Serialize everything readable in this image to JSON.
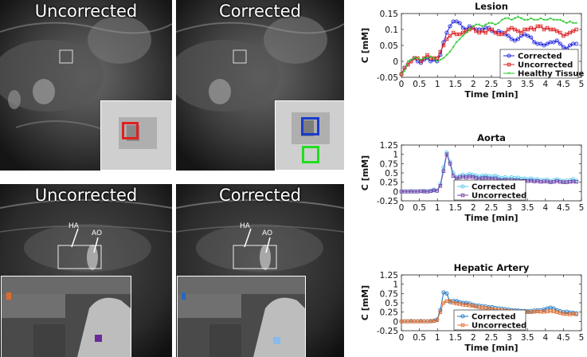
{
  "panels": {
    "top_left_title": "Uncorrected",
    "top_right_title": "Corrected",
    "bottom_left_title": "Uncorrected",
    "bottom_right_title": "Corrected",
    "ha_label": "HA",
    "ao_label": "AO"
  },
  "colors": {
    "roi_red": "#e02020",
    "roi_blue": "#1a3ccc",
    "roi_green": "#22dd22",
    "roi_orange": "#e06a2a",
    "roi_purple": "#6a2a9a",
    "roi_cyan": "#2a66c0",
    "roi_light_blue": "#88bbee"
  },
  "chart_data": [
    {
      "type": "line",
      "title": "Lesion",
      "xlabel": "Time [min]",
      "ylabel": "C [mM]",
      "xlim": [
        0,
        5
      ],
      "ylim": [
        -0.05,
        0.15
      ],
      "xticks": [
        "0",
        "0.5",
        "1",
        "1.5",
        "2",
        "2.5",
        "3",
        "3.5",
        "4",
        "4.5",
        "5"
      ],
      "yticks": [
        "-0.05",
        "0",
        "0.05",
        "0.1",
        "0.15"
      ],
      "legend_position": "bottom-right",
      "x": [
        0,
        0.09,
        0.18,
        0.27,
        0.36,
        0.45,
        0.54,
        0.63,
        0.72,
        0.81,
        0.9,
        0.99,
        1.08,
        1.17,
        1.26,
        1.35,
        1.44,
        1.53,
        1.62,
        1.71,
        1.8,
        1.89,
        1.98,
        2.07,
        2.16,
        2.25,
        2.34,
        2.43,
        2.52,
        2.61,
        2.7,
        2.79,
        2.88,
        2.97,
        3.06,
        3.15,
        3.24,
        3.33,
        3.42,
        3.51,
        3.6,
        3.69,
        3.78,
        3.87,
        3.96,
        4.05,
        4.14,
        4.23,
        4.32,
        4.41,
        4.5,
        4.59,
        4.68,
        4.77,
        4.86
      ],
      "series": [
        {
          "name": "Corrected",
          "color": "#1f22dd",
          "marker": "circle",
          "values": [
            -0.04,
            -0.02,
            -0.01,
            0.0,
            0.01,
            0.0,
            -0.005,
            0.005,
            0.01,
            0.0,
            0.005,
            0.0,
            0.02,
            0.06,
            0.09,
            0.11,
            0.125,
            0.125,
            0.12,
            0.105,
            0.1,
            0.11,
            0.105,
            0.1,
            0.1,
            0.1,
            0.105,
            0.105,
            0.095,
            0.09,
            0.095,
            0.09,
            0.085,
            0.08,
            0.07,
            0.065,
            0.07,
            0.08,
            0.085,
            0.08,
            0.075,
            0.06,
            0.055,
            0.055,
            0.05,
            0.055,
            0.06,
            0.06,
            0.065,
            0.055,
            0.045,
            0.04,
            0.05,
            0.055,
            0.055
          ]
        },
        {
          "name": "Uncorrected",
          "color": "#dd2222",
          "marker": "square",
          "values": [
            -0.04,
            -0.02,
            -0.01,
            0.0,
            0.01,
            0.01,
            0.0,
            0.01,
            0.02,
            0.01,
            0.01,
            0.01,
            0.03,
            0.05,
            0.07,
            0.08,
            0.09,
            0.085,
            0.085,
            0.09,
            0.095,
            0.1,
            0.105,
            0.095,
            0.09,
            0.095,
            0.09,
            0.1,
            0.1,
            0.09,
            0.085,
            0.085,
            0.09,
            0.1,
            0.105,
            0.1,
            0.095,
            0.09,
            0.1,
            0.1,
            0.105,
            0.1,
            0.11,
            0.11,
            0.1,
            0.105,
            0.1,
            0.1,
            0.095,
            0.09,
            0.08,
            0.085,
            0.09,
            0.095,
            0.1
          ]
        },
        {
          "name": "Healthy Tissue",
          "color": "#22c422",
          "marker": "star",
          "values": [
            -0.04,
            -0.03,
            0.0,
            0.005,
            0.01,
            0.01,
            0.005,
            0.01,
            0.01,
            0.015,
            0.01,
            0.0,
            0.005,
            0.01,
            0.02,
            0.03,
            0.045,
            0.06,
            0.07,
            0.08,
            0.09,
            0.1,
            0.11,
            0.115,
            0.115,
            0.11,
            0.115,
            0.12,
            0.12,
            0.115,
            0.12,
            0.13,
            0.135,
            0.135,
            0.13,
            0.135,
            0.14,
            0.135,
            0.13,
            0.13,
            0.135,
            0.13,
            0.13,
            0.135,
            0.13,
            0.13,
            0.135,
            0.13,
            0.13,
            0.13,
            0.125,
            0.12,
            0.125,
            0.12,
            0.12
          ]
        }
      ]
    },
    {
      "type": "line",
      "title": "Aorta",
      "xlabel": "Time [min]",
      "ylabel": "C [mM]",
      "xlim": [
        0,
        5
      ],
      "ylim": [
        -0.25,
        1.25
      ],
      "xticks": [
        "0",
        "0.5",
        "1",
        "1.5",
        "2",
        "2.5",
        "3",
        "3.5",
        "4",
        "4.5",
        "5"
      ],
      "yticks": [
        "-0.25",
        "0",
        "0.25",
        "0.5",
        "0.75",
        "1",
        "1.25"
      ],
      "legend_position": "bottom-center",
      "x": [
        0,
        0.09,
        0.18,
        0.27,
        0.36,
        0.45,
        0.54,
        0.63,
        0.72,
        0.81,
        0.9,
        0.99,
        1.08,
        1.17,
        1.26,
        1.35,
        1.44,
        1.53,
        1.62,
        1.71,
        1.8,
        1.89,
        1.98,
        2.07,
        2.16,
        2.25,
        2.34,
        2.43,
        2.52,
        2.61,
        2.7,
        2.79,
        2.88,
        2.97,
        3.06,
        3.15,
        3.24,
        3.33,
        3.42,
        3.51,
        3.6,
        3.69,
        3.78,
        3.87,
        3.96,
        4.05,
        4.14,
        4.23,
        4.32,
        4.41,
        4.5,
        4.59,
        4.68,
        4.77,
        4.86
      ],
      "series": [
        {
          "name": "Corrected",
          "color": "#55c8ee",
          "marker": "circle",
          "values": [
            0.0,
            0.0,
            0.0,
            0.01,
            0.0,
            0.0,
            0.01,
            0.02,
            0.0,
            0.02,
            0.05,
            0.02,
            0.2,
            0.65,
            1.05,
            0.8,
            0.5,
            0.38,
            0.42,
            0.45,
            0.43,
            0.47,
            0.45,
            0.43,
            0.4,
            0.42,
            0.43,
            0.41,
            0.4,
            0.42,
            0.38,
            0.36,
            0.38,
            0.35,
            0.38,
            0.36,
            0.37,
            0.34,
            0.35,
            0.33,
            0.35,
            0.32,
            0.33,
            0.3,
            0.31,
            0.32,
            0.28,
            0.3,
            0.33,
            0.3,
            0.28,
            0.29,
            0.3,
            0.33,
            0.29
          ]
        },
        {
          "name": "Uncorrected",
          "color": "#7744aa",
          "marker": "square",
          "values": [
            0.0,
            0.0,
            0.0,
            0.0,
            0.0,
            0.0,
            0.01,
            0.0,
            0.0,
            0.01,
            0.03,
            0.02,
            0.15,
            0.55,
            1.0,
            0.75,
            0.42,
            0.35,
            0.38,
            0.4,
            0.38,
            0.4,
            0.39,
            0.37,
            0.34,
            0.36,
            0.37,
            0.35,
            0.34,
            0.35,
            0.32,
            0.3,
            0.32,
            0.3,
            0.31,
            0.3,
            0.3,
            0.28,
            0.29,
            0.28,
            0.29,
            0.27,
            0.28,
            0.26,
            0.27,
            0.27,
            0.25,
            0.26,
            0.28,
            0.26,
            0.25,
            0.25,
            0.26,
            0.27,
            0.26
          ]
        }
      ]
    },
    {
      "type": "line",
      "title": "Hepatic Artery",
      "xlabel": "Time [min]",
      "ylabel": "C [mM]",
      "xlim": [
        0,
        5
      ],
      "ylim": [
        -0.25,
        1.25
      ],
      "xticks": [
        "0",
        "0.5",
        "1",
        "1.5",
        "2",
        "2.5",
        "3",
        "3.5",
        "4",
        "4.5",
        "5"
      ],
      "yticks": [
        "-0.25",
        "0",
        "0.25",
        "0.5",
        "0.75",
        "1",
        "1.25"
      ],
      "legend_position": "bottom-center",
      "x": [
        0,
        0.09,
        0.18,
        0.27,
        0.36,
        0.45,
        0.54,
        0.63,
        0.72,
        0.81,
        0.9,
        0.99,
        1.08,
        1.17,
        1.26,
        1.35,
        1.44,
        1.53,
        1.62,
        1.71,
        1.8,
        1.89,
        1.98,
        2.07,
        2.16,
        2.25,
        2.34,
        2.43,
        2.52,
        2.61,
        2.7,
        2.79,
        2.88,
        2.97,
        3.06,
        3.15,
        3.24,
        3.33,
        3.42,
        3.51,
        3.6,
        3.69,
        3.78,
        3.87,
        3.96,
        4.05,
        4.14,
        4.23,
        4.32,
        4.41,
        4.5,
        4.59,
        4.68,
        4.77,
        4.86
      ],
      "series": [
        {
          "name": "Corrected",
          "color": "#1a74c4",
          "marker": "circle",
          "values": [
            0.0,
            0.0,
            0.0,
            0.01,
            0.0,
            0.0,
            0.01,
            0.0,
            0.0,
            0.01,
            0.02,
            0.05,
            0.3,
            0.78,
            0.75,
            0.52,
            0.55,
            0.55,
            0.52,
            0.5,
            0.5,
            0.48,
            0.45,
            0.43,
            0.42,
            0.41,
            0.4,
            0.38,
            0.38,
            0.36,
            0.35,
            0.34,
            0.33,
            0.32,
            0.3,
            0.3,
            0.29,
            0.28,
            0.28,
            0.27,
            0.28,
            0.29,
            0.3,
            0.3,
            0.32,
            0.35,
            0.37,
            0.35,
            0.3,
            0.27,
            0.25,
            0.26,
            0.24,
            0.23,
            0.22
          ]
        },
        {
          "name": "Uncorrected",
          "color": "#e07030",
          "marker": "square",
          "values": [
            0.0,
            0.0,
            0.0,
            0.0,
            0.0,
            0.0,
            0.0,
            0.0,
            0.0,
            0.0,
            0.01,
            0.03,
            0.25,
            0.5,
            0.55,
            0.55,
            0.5,
            0.48,
            0.47,
            0.45,
            0.44,
            0.43,
            0.42,
            0.4,
            0.38,
            0.37,
            0.36,
            0.35,
            0.33,
            0.32,
            0.31,
            0.3,
            0.29,
            0.28,
            0.27,
            0.27,
            0.26,
            0.26,
            0.25,
            0.25,
            0.25,
            0.26,
            0.27,
            0.26,
            0.26,
            0.27,
            0.28,
            0.27,
            0.25,
            0.23,
            0.2,
            0.2,
            0.19,
            0.2,
            0.19
          ]
        }
      ]
    }
  ]
}
